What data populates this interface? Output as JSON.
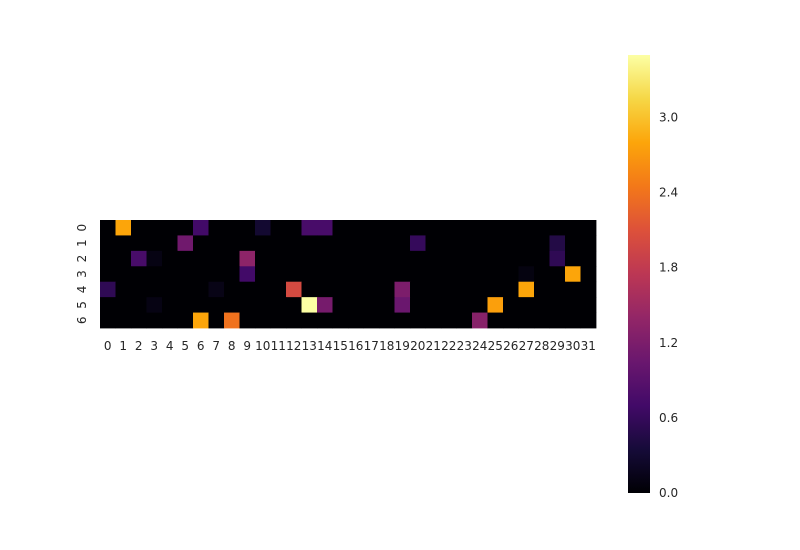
{
  "chart_data": {
    "type": "heatmap",
    "title": "",
    "xlabel": "",
    "ylabel": "",
    "colormap": "inferno",
    "x_categories": [
      "0",
      "1",
      "2",
      "3",
      "4",
      "5",
      "6",
      "7",
      "8",
      "9",
      "10",
      "11",
      "12",
      "13",
      "14",
      "15",
      "16",
      "17",
      "18",
      "19",
      "20",
      "21",
      "22",
      "23",
      "24",
      "25",
      "26",
      "27",
      "28",
      "29",
      "30",
      "31"
    ],
    "y_categories": [
      "0",
      "1",
      "2",
      "3",
      "4",
      "5",
      "6"
    ],
    "values": [
      [
        0,
        2.8,
        0,
        0,
        0,
        0,
        0.7,
        0,
        0,
        0,
        0.3,
        0,
        0,
        0.75,
        0.75,
        0,
        0,
        0,
        0,
        0,
        0,
        0,
        0,
        0,
        0,
        0,
        0,
        0,
        0,
        0,
        0,
        0
      ],
      [
        0,
        0,
        0,
        0,
        0,
        1.1,
        0,
        0,
        0,
        0,
        0,
        0,
        0,
        0,
        0,
        0,
        0,
        0,
        0,
        0,
        0.6,
        0,
        0,
        0,
        0,
        0,
        0,
        0,
        0,
        0.45,
        0,
        0
      ],
      [
        0,
        0,
        0.75,
        0.1,
        0,
        0,
        0,
        0,
        0,
        1.35,
        0,
        0,
        0,
        0,
        0,
        0,
        0,
        0,
        0,
        0,
        0,
        0,
        0,
        0,
        0,
        0,
        0,
        0,
        0,
        0.55,
        0,
        0
      ],
      [
        0,
        0,
        0,
        0,
        0,
        0,
        0,
        0,
        0,
        0.7,
        0,
        0,
        0,
        0,
        0,
        0,
        0,
        0,
        0,
        0,
        0,
        0,
        0,
        0,
        0,
        0,
        0,
        0.08,
        0,
        0,
        2.8,
        0
      ],
      [
        0.55,
        0,
        0,
        0,
        0,
        0,
        0,
        0.12,
        0,
        0,
        0,
        0,
        2.0,
        0,
        0,
        0,
        0,
        0,
        0,
        1.2,
        0,
        0,
        0,
        0,
        0,
        0,
        0,
        2.8,
        0,
        0,
        0,
        0
      ],
      [
        0,
        0,
        0,
        0.1,
        0,
        0,
        0,
        0,
        0,
        0,
        0,
        0,
        0,
        3.5,
        1.15,
        0,
        0,
        0,
        0,
        1.05,
        0,
        0,
        0,
        0,
        0,
        2.75,
        0,
        0,
        0,
        0,
        0,
        0
      ],
      [
        0,
        0,
        0,
        0,
        0,
        0,
        2.8,
        0,
        2.4,
        0,
        0,
        0,
        0,
        0,
        0,
        0,
        0,
        0,
        0,
        0,
        0,
        0,
        0,
        0,
        1.3,
        0,
        0,
        0,
        0,
        0,
        0,
        0
      ]
    ],
    "zlim": [
      0,
      3.5
    ],
    "colorbar_ticks": [
      "0.0",
      "0.6",
      "1.2",
      "1.8",
      "2.4",
      "3.0"
    ],
    "colorbar_tick_values": [
      0,
      0.6,
      1.2,
      1.8,
      2.4,
      3.0
    ]
  }
}
